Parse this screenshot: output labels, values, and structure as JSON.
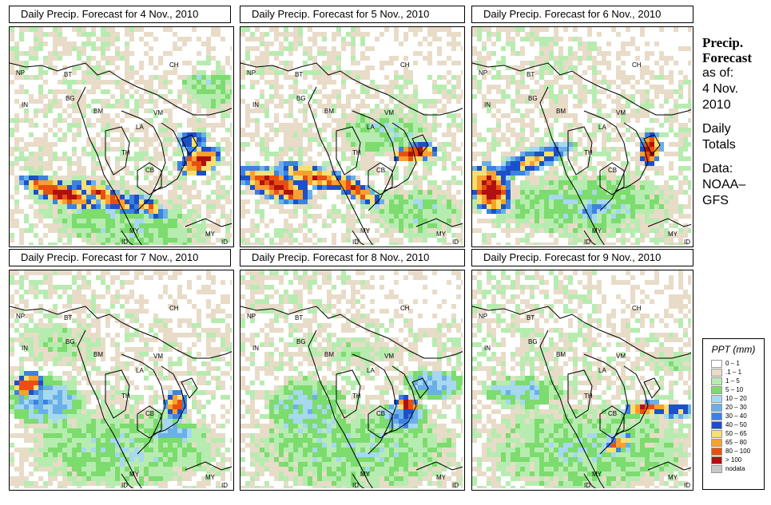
{
  "panels": [
    {
      "title": "Daily Precip. Forecast for  4 Nov., 2010",
      "pattern": 0
    },
    {
      "title": "Daily Precip. Forecast for  5 Nov., 2010",
      "pattern": 1
    },
    {
      "title": "Daily Precip. Forecast for  6 Nov., 2010",
      "pattern": 2
    },
    {
      "title": "Daily Precip. Forecast for  7 Nov., 2010",
      "pattern": 3
    },
    {
      "title": "Daily Precip. Forecast for  8 Nov., 2010",
      "pattern": 4
    },
    {
      "title": "Daily Precip. Forecast for  9 Nov., 2010",
      "pattern": 5
    }
  ],
  "countries": {
    "np": "NP",
    "bt": "BT",
    "ch": "CH",
    "in": "IN",
    "bg": "BG",
    "bm": "BM",
    "vm": "VM",
    "la": "LA",
    "th": "TH",
    "cb": "CB",
    "my1": "MY",
    "my2": "MY",
    "id1": "ID",
    "id2": "ID"
  },
  "sidebar": {
    "heading1": "Precip.",
    "heading2": "Forecast",
    "as_of": "as of:",
    "date1": "4 Nov.",
    "date2": "2010",
    "daily1": "Daily",
    "daily2": "Totals",
    "data1": "Data:",
    "data2": "NOAA–",
    "data3": "GFS"
  },
  "legend": {
    "title": "PPT (mm)",
    "items": [
      {
        "label": "0 – 1",
        "color": "#ffffff"
      },
      {
        "label": ".1 – 1",
        "color": "#e8dcc8"
      },
      {
        "label": "1 – 5",
        "color": "#b7ecb0"
      },
      {
        "label": "5 – 10",
        "color": "#7cdc6e"
      },
      {
        "label": "10 – 20",
        "color": "#a6d8f0"
      },
      {
        "label": "20 – 30",
        "color": "#6ab0e8"
      },
      {
        "label": "30 – 40",
        "color": "#3c82e0"
      },
      {
        "label": "40 – 50",
        "color": "#1c50c8"
      },
      {
        "label": "50 – 65",
        "color": "#f8e070"
      },
      {
        "label": "65 – 80",
        "color": "#f8a030"
      },
      {
        "label": "80 – 100",
        "color": "#e85010"
      },
      {
        "label": "> 100",
        "color": "#b01010"
      },
      {
        "label": "nodata",
        "color": "#c8c8c8"
      }
    ]
  }
}
